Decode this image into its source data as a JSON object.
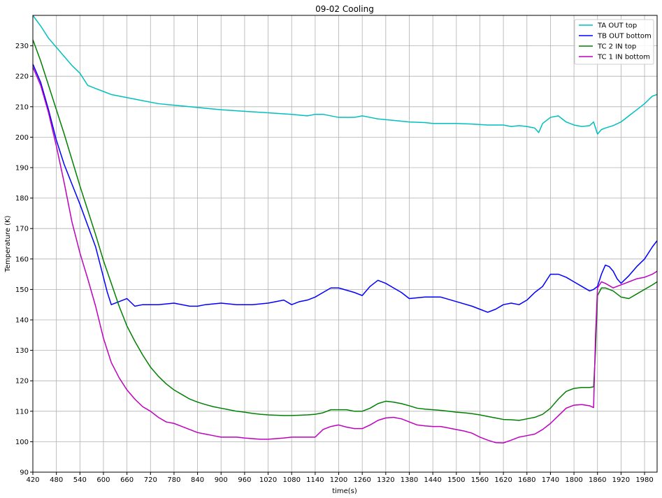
{
  "chart_data": {
    "type": "line",
    "title": "09-02 Cooling",
    "xlabel": "time(s)",
    "ylabel": "Temperature (K)",
    "xlim": [
      420,
      2012
    ],
    "ylim": [
      90,
      240
    ],
    "xticks": [
      420,
      480,
      540,
      600,
      660,
      720,
      780,
      840,
      900,
      960,
      1020,
      1080,
      1140,
      1200,
      1260,
      1320,
      1380,
      1440,
      1500,
      1560,
      1620,
      1680,
      1740,
      1800,
      1860,
      1920,
      1980
    ],
    "yticks": [
      90,
      100,
      110,
      120,
      130,
      140,
      150,
      160,
      170,
      180,
      190,
      200,
      210,
      220,
      230
    ],
    "grid": true,
    "legend_position": "top-right",
    "series": [
      {
        "name": "TA OUT top",
        "color": "#00bfbf",
        "x": [
          420,
          440,
          460,
          480,
          500,
          520,
          540,
          560,
          580,
          600,
          620,
          660,
          700,
          740,
          780,
          820,
          860,
          900,
          960,
          1020,
          1080,
          1120,
          1140,
          1160,
          1200,
          1240,
          1260,
          1280,
          1300,
          1340,
          1380,
          1420,
          1440,
          1480,
          1500,
          1540,
          1580,
          1620,
          1640,
          1660,
          1680,
          1700,
          1710,
          1720,
          1740,
          1760,
          1780,
          1800,
          1820,
          1840,
          1850,
          1860,
          1870,
          1880,
          1900,
          1920,
          1940,
          1960,
          1980,
          2000,
          2012
        ],
        "y": [
          240,
          236.5,
          232.5,
          229.5,
          226.5,
          223.5,
          221,
          217,
          216,
          215,
          214,
          213,
          212,
          211,
          210.5,
          210,
          209.5,
          209,
          208.5,
          208,
          207.5,
          207,
          207.5,
          207.5,
          206.5,
          206.5,
          207,
          206.5,
          206,
          205.5,
          205,
          204.8,
          204.5,
          204.5,
          204.5,
          204.3,
          204,
          204,
          203.5,
          203.8,
          203.5,
          203,
          201.5,
          204.5,
          206.5,
          207,
          205,
          204,
          203.5,
          203.8,
          205,
          201,
          202.5,
          203,
          203.8,
          205,
          207,
          209,
          211,
          213.5,
          214
        ]
      },
      {
        "name": "TB OUT bottom",
        "color": "#0000ff",
        "x": [
          420,
          440,
          460,
          480,
          500,
          520,
          540,
          560,
          580,
          600,
          610,
          620,
          640,
          660,
          680,
          700,
          740,
          780,
          820,
          840,
          860,
          900,
          940,
          980,
          1020,
          1060,
          1080,
          1100,
          1120,
          1140,
          1160,
          1180,
          1200,
          1240,
          1260,
          1280,
          1300,
          1320,
          1340,
          1360,
          1380,
          1420,
          1460,
          1500,
          1540,
          1560,
          1580,
          1600,
          1620,
          1640,
          1660,
          1680,
          1700,
          1720,
          1740,
          1760,
          1780,
          1800,
          1820,
          1840,
          1850,
          1860,
          1870,
          1880,
          1890,
          1900,
          1910,
          1920,
          1940,
          1960,
          1980,
          2000,
          2012
        ],
        "y": [
          224,
          218,
          209,
          199,
          191,
          184.5,
          178,
          171,
          164,
          154,
          149,
          145,
          146,
          147,
          144.5,
          145,
          145,
          145.5,
          144.5,
          144.5,
          145,
          145.5,
          145,
          145,
          145.5,
          146.5,
          145,
          146,
          146.5,
          147.5,
          149,
          150.5,
          150.5,
          149,
          148,
          151,
          153,
          152,
          150.5,
          149,
          147,
          147.5,
          147.5,
          146,
          144.5,
          143.5,
          142.5,
          143.5,
          145,
          145.5,
          145,
          146.5,
          149,
          151,
          155,
          155,
          154,
          152.5,
          151,
          149.5,
          150,
          151,
          155,
          158,
          157.5,
          156,
          153.5,
          152,
          154.5,
          157.5,
          160,
          164,
          166
        ]
      },
      {
        "name": "TC 2 IN top",
        "color": "#008000",
        "x": [
          420,
          440,
          460,
          480,
          500,
          520,
          540,
          560,
          580,
          600,
          620,
          640,
          660,
          680,
          700,
          720,
          740,
          760,
          780,
          800,
          820,
          840,
          860,
          880,
          900,
          920,
          940,
          960,
          980,
          1000,
          1020,
          1040,
          1060,
          1080,
          1100,
          1120,
          1140,
          1160,
          1180,
          1200,
          1220,
          1240,
          1260,
          1280,
          1300,
          1320,
          1340,
          1360,
          1380,
          1400,
          1420,
          1440,
          1460,
          1480,
          1500,
          1520,
          1540,
          1560,
          1580,
          1600,
          1620,
          1640,
          1660,
          1680,
          1700,
          1720,
          1740,
          1760,
          1780,
          1800,
          1820,
          1840,
          1850,
          1855,
          1860,
          1870,
          1880,
          1900,
          1920,
          1940,
          1960,
          1980,
          2000,
          2012
        ],
        "y": [
          232,
          225,
          217,
          209,
          201,
          192.5,
          184,
          176,
          168,
          159.5,
          152,
          144.5,
          138,
          133,
          128.5,
          124.5,
          121.5,
          119,
          117,
          115.5,
          114,
          113,
          112.2,
          111.5,
          111,
          110.5,
          110,
          109.7,
          109.3,
          109,
          108.8,
          108.7,
          108.6,
          108.6,
          108.7,
          108.8,
          109,
          109.5,
          110.5,
          110.5,
          110.5,
          110,
          110,
          111,
          112.5,
          113.3,
          113,
          112.5,
          111.8,
          111,
          110.7,
          110.5,
          110.3,
          110,
          109.7,
          109.5,
          109.2,
          108.8,
          108.3,
          107.8,
          107.3,
          107.2,
          107,
          107.5,
          108,
          109,
          111,
          114,
          116.5,
          117.5,
          117.8,
          117.8,
          118,
          130,
          148,
          150.5,
          150.5,
          149.5,
          147.5,
          147,
          148.5,
          150,
          151.5,
          152.5
        ]
      },
      {
        "name": "TC 1 IN bottom",
        "color": "#bf00bf",
        "x": [
          420,
          440,
          460,
          480,
          500,
          520,
          540,
          560,
          580,
          600,
          610,
          620,
          640,
          660,
          680,
          700,
          720,
          740,
          760,
          780,
          800,
          820,
          840,
          860,
          880,
          900,
          920,
          940,
          960,
          980,
          1000,
          1020,
          1040,
          1060,
          1080,
          1100,
          1120,
          1140,
          1160,
          1180,
          1200,
          1220,
          1240,
          1260,
          1280,
          1300,
          1320,
          1340,
          1360,
          1380,
          1400,
          1420,
          1440,
          1460,
          1480,
          1500,
          1520,
          1540,
          1560,
          1580,
          1600,
          1620,
          1640,
          1660,
          1680,
          1700,
          1720,
          1740,
          1760,
          1780,
          1800,
          1820,
          1840,
          1850,
          1855,
          1860,
          1870,
          1880,
          1900,
          1920,
          1940,
          1960,
          1980,
          2000,
          2012
        ],
        "y": [
          223,
          217,
          208,
          197,
          185,
          172,
          162,
          153.5,
          144.5,
          134,
          130,
          126,
          121,
          117,
          114,
          111.5,
          110,
          108,
          106.5,
          106,
          105,
          104,
          103,
          102.5,
          102,
          101.5,
          101.5,
          101.5,
          101.2,
          101,
          100.8,
          100.8,
          101,
          101.2,
          101.5,
          101.5,
          101.5,
          101.5,
          104,
          105,
          105.5,
          104.8,
          104.3,
          104.3,
          105.5,
          107,
          107.8,
          108,
          107.5,
          106.5,
          105.5,
          105.2,
          105,
          105,
          104.5,
          104,
          103.5,
          102.8,
          101.5,
          100.5,
          99.7,
          99.6,
          100.5,
          101.5,
          102,
          102.5,
          104,
          106,
          108.5,
          111,
          112,
          112.2,
          111.8,
          111.2,
          135,
          150.5,
          152.5,
          152,
          150.5,
          151.5,
          152.5,
          153.5,
          154,
          155,
          156
        ]
      }
    ]
  }
}
